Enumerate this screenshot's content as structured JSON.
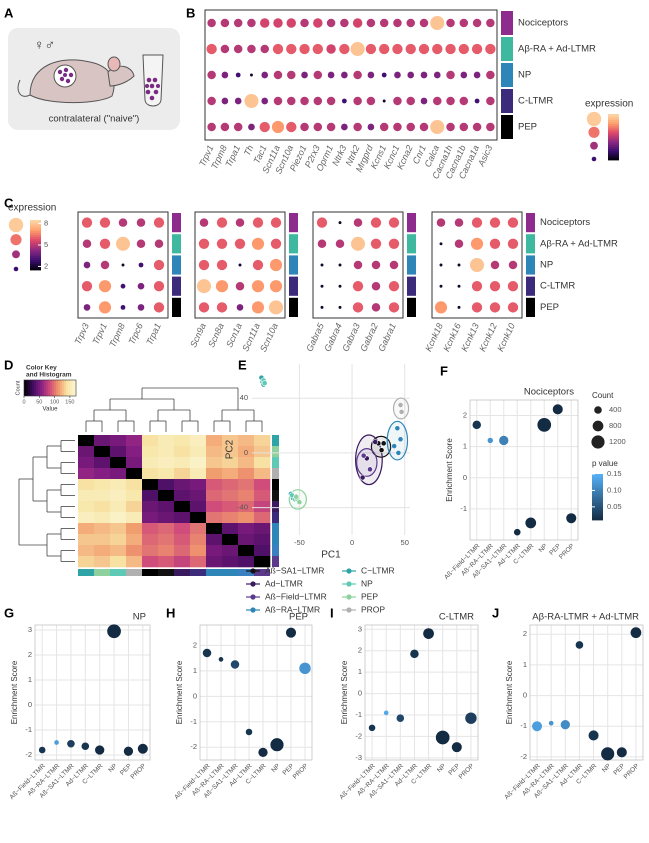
{
  "panel_letters": [
    "A",
    "B",
    "C",
    "D",
    "E",
    "F",
    "G",
    "H",
    "I",
    "J"
  ],
  "illustration": {
    "sexes": "♀♂",
    "caption": "contralateral (\"naive\")"
  },
  "chart_data": [
    {
      "type": "dotplot",
      "legend_title": "expression",
      "colorlim": [
        1.5,
        8.5
      ],
      "colors": [
        "#000004",
        "#3b0f70",
        "#8c2981",
        "#de4968",
        "#fe9f6d",
        "#fcd9a8"
      ],
      "rows": [
        "Nociceptors",
        "Aβ-RA + Ad-LTMR",
        "NP",
        "C-LTMR",
        "PEP"
      ],
      "row_colors": [
        "#8e2c8e",
        "#3fb8a0",
        "#2e86b8",
        "#3c2a7a",
        "#000000"
      ],
      "panels": [
        {
          "genes": [
            "Trpv1",
            "Trpm8",
            "Trpa1",
            "Th",
            "Tac1",
            "Scn11a",
            "Scn10a",
            "Piezo1",
            "P2rx3",
            "Oprm1",
            "Ntrk3",
            "Ntrk2",
            "Mrgprd",
            "Kcns1",
            "Kcnc1",
            "Kcna2",
            "Cnr1",
            "Calca",
            "Cacna1h",
            "Cacna1b",
            "Cacna1a",
            "Asic3"
          ],
          "values": [
            [
              5,
              5,
              5,
              5,
              5.5,
              5.5,
              5.5,
              5,
              5.5,
              5,
              5,
              5.5,
              5,
              5,
              5,
              5,
              5,
              8,
              5,
              5,
              5,
              5
            ],
            [
              6,
              5,
              5,
              5,
              5,
              6,
              6,
              6,
              6,
              5.5,
              6,
              8,
              6,
              6,
              6,
              6,
              6,
              6,
              6,
              6,
              6,
              6
            ],
            [
              5,
              4,
              3,
              2,
              4,
              5,
              5,
              4,
              5,
              4,
              4,
              5,
              4,
              3,
              4,
              4,
              4,
              4,
              5,
              4,
              4,
              5
            ],
            [
              5,
              4,
              4,
              8,
              4,
              5,
              5,
              5,
              5,
              5,
              3,
              5,
              5,
              2,
              5,
              5,
              4,
              5,
              5,
              5,
              3,
              5
            ],
            [
              5,
              5,
              5,
              4,
              6,
              7,
              6,
              5,
              5,
              5,
              4,
              5,
              4,
              5,
              5,
              5,
              5,
              8,
              5,
              5,
              5,
              5
            ]
          ]
        }
      ]
    },
    {
      "type": "dotplot",
      "legend_title": "expression",
      "legend_ticks": [
        2,
        5,
        8
      ],
      "colorlim": [
        1.5,
        8.5
      ],
      "colors": [
        "#000004",
        "#3b0f70",
        "#8c2981",
        "#de4968",
        "#fe9f6d",
        "#fcd9a8"
      ],
      "rows": [
        "Nociceptors",
        "Aβ-RA + Ad-LTMR",
        "NP",
        "C-LTMR",
        "PEP"
      ],
      "row_colors": [
        "#8e2c8e",
        "#3fb8a0",
        "#2e86b8",
        "#3c2a7a",
        "#000000"
      ],
      "panels": [
        {
          "genes": [
            "Trpv3",
            "Trpv1",
            "Trpm8",
            "Trpc6",
            "Trpa1"
          ],
          "values": [
            [
              6,
              6,
              5,
              5,
              6
            ],
            [
              5,
              6,
              8,
              5,
              5
            ],
            [
              4,
              5,
              2,
              3,
              6
            ],
            [
              6,
              7,
              3,
              4,
              6
            ],
            [
              4,
              7,
              3,
              4,
              6
            ]
          ]
        },
        {
          "genes": [
            "Scn9a",
            "Scn8a",
            "Scn1a",
            "Scn11a",
            "Scn10a"
          ],
          "values": [
            [
              5,
              6,
              5,
              6,
              6
            ],
            [
              6,
              6,
              6,
              7,
              6
            ],
            [
              6,
              6,
              2,
              6,
              7
            ],
            [
              8,
              7,
              5,
              7,
              7
            ],
            [
              6,
              6,
              4,
              7,
              8
            ]
          ]
        },
        {
          "genes": [
            "Gabra5",
            "Gabra4",
            "Gabra3",
            "Gabra2",
            "Gabra1"
          ],
          "values": [
            [
              6,
              2,
              5,
              6,
              6
            ],
            [
              5,
              5,
              8,
              6,
              6
            ],
            [
              2,
              2,
              5,
              5,
              5
            ],
            [
              2,
              2,
              6,
              5,
              6
            ],
            [
              2,
              2,
              6,
              5,
              6
            ]
          ]
        },
        {
          "genes": [
            "Kcnk18",
            "Kcnk16",
            "Kcnk13",
            "Kcnk12",
            "Kcnk10"
          ],
          "values": [
            [
              5,
              5,
              6,
              6,
              6
            ],
            [
              2,
              5,
              7,
              6,
              6
            ],
            [
              2,
              2,
              8,
              5,
              5
            ],
            [
              2,
              2,
              6,
              6,
              6
            ],
            [
              7,
              2,
              6,
              6,
              6
            ]
          ]
        }
      ]
    },
    {
      "type": "heatmap",
      "key_title": [
        "Color Key",
        "and Histogram"
      ],
      "key_xlabel": "Value",
      "key_ylabel": "Count",
      "key_ticks": [
        0,
        50,
        100,
        150
      ],
      "colorlim": [
        0,
        170
      ],
      "colors": [
        "#000000",
        "#3d0b5e",
        "#8a1f84",
        "#d04c7a",
        "#f19a6c",
        "#f8e6a6",
        "#fdf7d8"
      ],
      "sample_colors": [
        "#2fa4a6",
        "#8fd19e",
        "#5ec9b5",
        "#b0b0b0",
        "#000000",
        "#111111",
        "#3a1a5e",
        "#3c2a7a",
        "#2e86b8",
        "#2e86b8",
        "#3a7fc0",
        "#5b3a8c"
      ],
      "values": [
        [
          0,
          45,
          50,
          60,
          140,
          150,
          145,
          155,
          120,
          130,
          125,
          135
        ],
        [
          45,
          0,
          40,
          55,
          145,
          150,
          140,
          150,
          125,
          130,
          120,
          130
        ],
        [
          50,
          40,
          0,
          50,
          150,
          155,
          150,
          160,
          130,
          135,
          125,
          140
        ],
        [
          60,
          55,
          50,
          0,
          140,
          145,
          135,
          150,
          115,
          120,
          110,
          125
        ],
        [
          140,
          145,
          150,
          140,
          0,
          35,
          45,
          50,
          90,
          95,
          100,
          85
        ],
        [
          150,
          150,
          155,
          145,
          35,
          0,
          40,
          45,
          95,
          100,
          105,
          90
        ],
        [
          145,
          140,
          150,
          135,
          45,
          40,
          0,
          40,
          85,
          90,
          95,
          80
        ],
        [
          155,
          150,
          160,
          150,
          50,
          45,
          40,
          0,
          100,
          105,
          110,
          95
        ],
        [
          120,
          125,
          130,
          115,
          90,
          95,
          85,
          100,
          0,
          40,
          50,
          45
        ],
        [
          130,
          130,
          135,
          120,
          95,
          100,
          90,
          105,
          40,
          0,
          45,
          40
        ],
        [
          125,
          120,
          125,
          110,
          100,
          105,
          95,
          110,
          50,
          45,
          0,
          35
        ],
        [
          135,
          130,
          140,
          125,
          85,
          90,
          80,
          95,
          45,
          40,
          35,
          0
        ]
      ]
    },
    {
      "type": "scatter",
      "xlabel": "PC1",
      "ylabel": "PC2",
      "xlim": [
        -95,
        55
      ],
      "ylim": [
        -60,
        65
      ],
      "xticks": [
        -50,
        0,
        50
      ],
      "yticks": [
        -40,
        0,
        40
      ],
      "grid": true,
      "series": [
        {
          "name": "Aß−SA1−LTMR",
          "color": "#111111",
          "x": [
            25,
            30,
            28
          ],
          "y": [
            7,
            7,
            2
          ]
        },
        {
          "name": "Ad−LTMR",
          "color": "#3a1a5e",
          "x": [
            10,
            14,
            22
          ],
          "y": [
            -18,
            -4,
            8
          ]
        },
        {
          "name": "Aß−Field−LTMR",
          "color": "#5b3a8c",
          "x": [
            11,
            17
          ],
          "y": [
            -2,
            -12
          ]
        },
        {
          "name": "Aß−RA−LTMR",
          "color": "#2e86b8",
          "x": [
            40,
            44,
            46,
            43
          ],
          "y": [
            5,
            0,
            10,
            18
          ]
        },
        {
          "name": "C−LTMR",
          "color": "#2fa4a6",
          "x": [
            -85,
            -84,
            -86,
            -58,
            -56
          ],
          "y": [
            52,
            50,
            55,
            -30,
            -33
          ]
        },
        {
          "name": "NP",
          "color": "#5ec9b5",
          "x": [
            -84,
            -83,
            -57,
            -54
          ],
          "y": [
            53,
            51,
            -31,
            -34
          ]
        },
        {
          "name": "PEP",
          "color": "#8fd19e",
          "x": [
            -52,
            -50,
            -53
          ],
          "y": [
            -34,
            -36,
            -32
          ]
        },
        {
          "name": "PROP",
          "color": "#b0b0b0",
          "x": [
            46,
            47
          ],
          "y": [
            35,
            30
          ]
        }
      ]
    },
    {
      "type": "bubble",
      "title": "Nociceptors",
      "ylabel": "Enrichment Score",
      "categories": [
        "Aß−Field−LTMR",
        "Aß−RA−LTMR",
        "Aß−SA1−LTMR",
        "Ad−LTMR",
        "C−LTMR",
        "NP",
        "PEP",
        "PROP"
      ],
      "values": [
        1.7,
        1.2,
        1.2,
        -1.75,
        -1.45,
        1.7,
        2.2,
        -1.3
      ],
      "sizes": [
        500,
        200,
        600,
        300,
        800,
        1300,
        700,
        700
      ],
      "pvalues": [
        0.02,
        0.12,
        0.1,
        0.01,
        0.01,
        0.01,
        0.01,
        0.01
      ],
      "ylim": [
        -2,
        2.5
      ],
      "yticks": [
        -1,
        0,
        1,
        2
      ],
      "colorlim": [
        0.01,
        0.15
      ],
      "colors": [
        "#132b43",
        "#56b1f7"
      ],
      "grid": true,
      "legend": {
        "size_title": "Count",
        "size_ticks": [
          400,
          800,
          1200
        ],
        "color_title": "p value",
        "color_ticks": [
          0.05,
          {
            "value": 0.1,
            "label": "0.10"
          },
          0.15
        ]
      }
    },
    {
      "type": "bubble",
      "title": "NP",
      "ylabel": "Enrichment Score",
      "categories": [
        "Aß−Field−LTMR",
        "Aß−RA−LTMR",
        "Aß−SA1−LTMR",
        "Ad−LTMR",
        "C−LTMR",
        "NP",
        "PEP",
        "PROP"
      ],
      "values": [
        -1.8,
        -1.5,
        -1.55,
        -1.65,
        -1.8,
        2.95,
        -1.85,
        -1.75
      ],
      "sizes": [
        300,
        150,
        400,
        400,
        600,
        1300,
        600,
        700
      ],
      "pvalues": [
        0.02,
        0.13,
        0.03,
        0.02,
        0.01,
        0.01,
        0.01,
        0.01
      ],
      "ylim": [
        -2.2,
        3.2
      ],
      "yticks": [
        -2,
        -1,
        0,
        1,
        2,
        3
      ],
      "colorlim": [
        0.01,
        0.15
      ],
      "colors": [
        "#132b43",
        "#56b1f7"
      ],
      "grid": true
    },
    {
      "type": "bubble",
      "title": "PEP",
      "ylabel": "Enrichment Score",
      "categories": [
        "Aß−Field−LTMR",
        "Aß−RA−LTMR",
        "Aß−SA1−LTMR",
        "Ad−LTMR",
        "C−LTMR",
        "NP",
        "PEP",
        "PROP"
      ],
      "values": [
        1.7,
        1.45,
        1.25,
        -1.4,
        -2.2,
        -1.9,
        2.5,
        1.1
      ],
      "sizes": [
        500,
        150,
        500,
        300,
        600,
        1200,
        700,
        900
      ],
      "pvalues": [
        0.02,
        0.02,
        0.04,
        0.02,
        0.01,
        0.01,
        0.01,
        0.12
      ],
      "ylim": [
        -2.5,
        2.8
      ],
      "yticks": [
        -2,
        -1,
        0,
        1,
        2
      ],
      "colorlim": [
        0.01,
        0.15
      ],
      "colors": [
        "#132b43",
        "#56b1f7"
      ],
      "grid": true
    },
    {
      "type": "bubble",
      "title": "C-LTMR",
      "ylabel": "Enrichment Score",
      "categories": [
        "Aß−Field−LTMR",
        "Aß−RA−LTMR",
        "Aß−SA1−LTMR",
        "Ad−LTMR",
        "C−LTMR",
        "NP",
        "PEP",
        "PROP"
      ],
      "values": [
        -1.6,
        -0.9,
        -1.15,
        1.85,
        2.8,
        -2.05,
        -2.5,
        -1.15
      ],
      "sizes": [
        300,
        150,
        400,
        500,
        800,
        1300,
        700,
        900
      ],
      "pvalues": [
        0.02,
        0.14,
        0.04,
        0.02,
        0.01,
        0.01,
        0.01,
        0.03
      ],
      "ylim": [
        -3.1,
        3.2
      ],
      "yticks": [
        -3,
        -2,
        -1,
        0,
        1,
        2,
        3
      ],
      "colorlim": [
        0.01,
        0.15
      ],
      "colors": [
        "#132b43",
        "#56b1f7"
      ],
      "grid": true
    },
    {
      "type": "bubble",
      "title": "Aβ-RA-LTMR + Ad-LTMR",
      "ylabel": "Enrichment Score",
      "categories": [
        "Aß−Field−LTMR",
        "Aß−RA−LTMR",
        "Aß−SA1−LTMR",
        "Ad−LTMR",
        "C−LTMR",
        "NP",
        "PEP",
        "PROP"
      ],
      "values": [
        -1,
        -0.9,
        -0.95,
        1.65,
        -1.3,
        -1.9,
        -1.85,
        2.05
      ],
      "sizes": [
        700,
        150,
        600,
        400,
        700,
        1200,
        700,
        800
      ],
      "pvalues": [
        0.13,
        0.12,
        0.11,
        0.02,
        0.02,
        0.01,
        0.01,
        0.01
      ],
      "ylim": [
        -2.1,
        2.3
      ],
      "yticks": [
        -2,
        -1,
        0,
        1,
        2
      ],
      "colorlim": [
        0.01,
        0.15
      ],
      "colors": [
        "#132b43",
        "#56b1f7"
      ],
      "grid": true
    }
  ]
}
